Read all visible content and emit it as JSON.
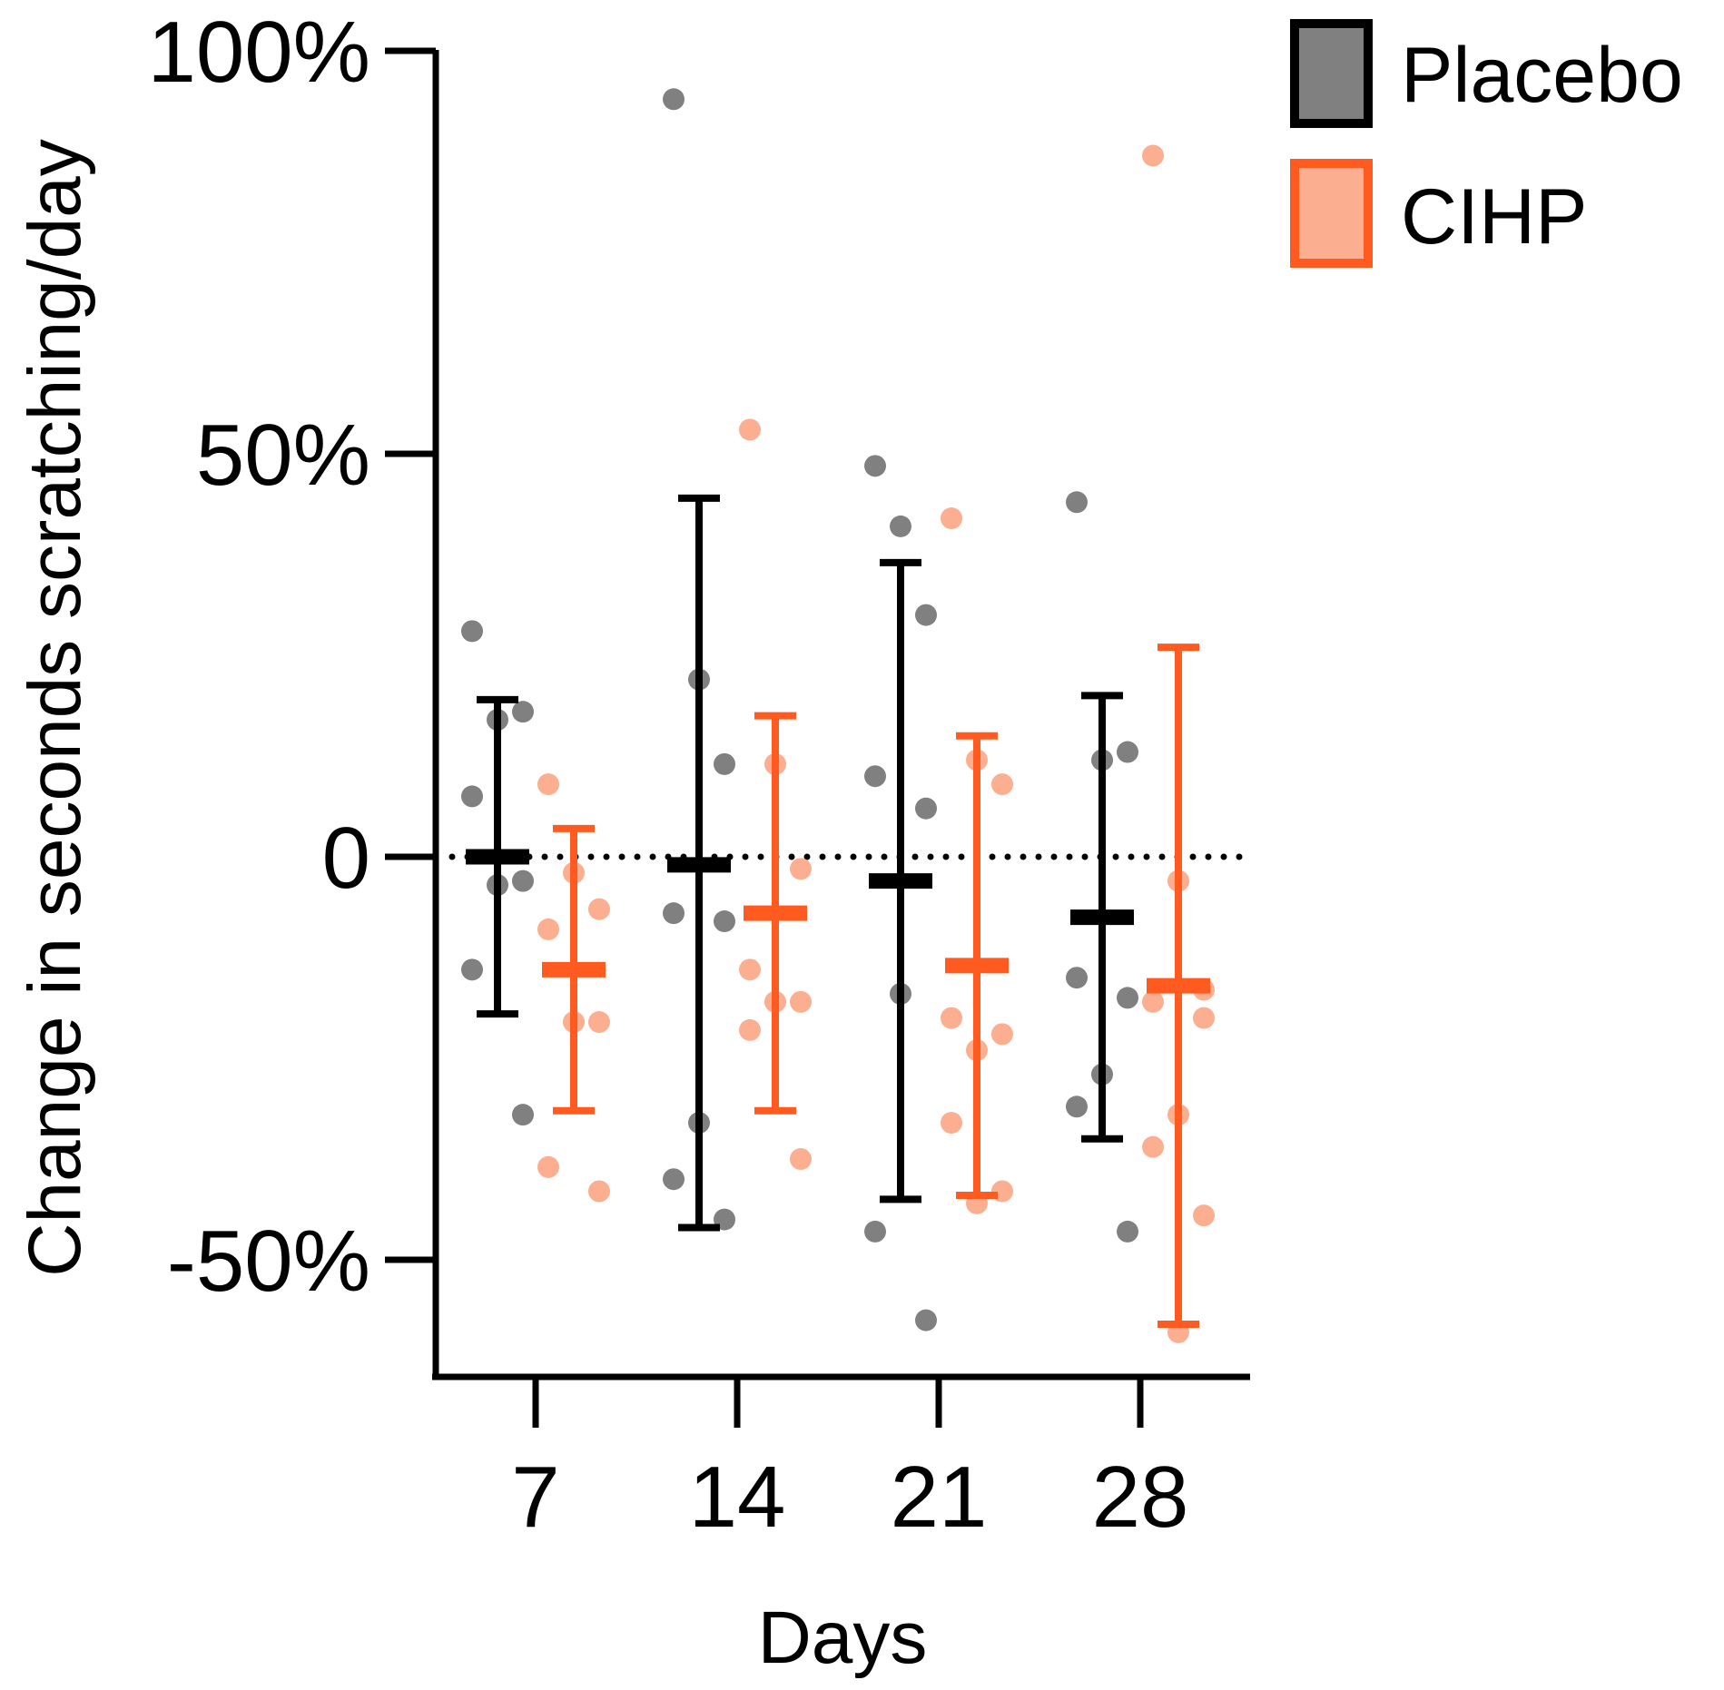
{
  "chart_data": {
    "type": "scatter",
    "subtype": "dot plot with mean and SD error bars",
    "title": "",
    "xlabel": "Days",
    "ylabel": "Change in seconds scratching/day",
    "categories": [
      "7",
      "14",
      "21",
      "28"
    ],
    "ylim": [
      -0.63,
      1.0
    ],
    "yticks": [
      {
        "value": 1.0,
        "label": "100%"
      },
      {
        "value": 0.5,
        "label": "50%"
      },
      {
        "value": 0.0,
        "label": "0"
      },
      {
        "value": -0.5,
        "label": "-50%"
      }
    ],
    "reference_line": {
      "value": 0,
      "style": "dotted"
    },
    "legend_position": "top-right",
    "series": [
      {
        "name": "Placebo",
        "point_color": "#808080",
        "line_color": "#000000",
        "groups": [
          {
            "day": "7",
            "mean": 0.0,
            "sd_upper": 0.195,
            "sd_lower": -0.195,
            "points": [
              0.28,
              0.17,
              0.18,
              0.075,
              -0.03,
              -0.035,
              -0.14,
              -0.32
            ]
          },
          {
            "day": "14",
            "mean": -0.01,
            "sd_upper": 0.445,
            "sd_lower": -0.46,
            "points": [
              0.94,
              0.22,
              0.115,
              -0.07,
              -0.08,
              -0.33,
              -0.4,
              -0.45
            ]
          },
          {
            "day": "21",
            "mean": -0.03,
            "sd_upper": 0.365,
            "sd_lower": -0.425,
            "points": [
              0.485,
              0.41,
              0.3,
              0.1,
              0.06,
              -0.17,
              -0.465,
              -0.575
            ]
          },
          {
            "day": "28",
            "mean": -0.075,
            "sd_upper": 0.2,
            "sd_lower": -0.35,
            "points": [
              0.44,
              0.12,
              0.13,
              -0.15,
              -0.175,
              -0.27,
              -0.31,
              -0.465
            ]
          }
        ]
      },
      {
        "name": "CIHP",
        "point_color": "#FCAE91",
        "line_color": "#FF5A1F",
        "groups": [
          {
            "day": "7",
            "mean": -0.14,
            "sd_upper": 0.035,
            "sd_lower": -0.315,
            "points": [
              0.09,
              -0.02,
              -0.065,
              -0.09,
              -0.205,
              -0.205,
              -0.385,
              -0.415
            ]
          },
          {
            "day": "14",
            "mean": -0.07,
            "sd_upper": 0.175,
            "sd_lower": -0.315,
            "points": [
              0.53,
              0.115,
              -0.015,
              -0.14,
              -0.18,
              -0.18,
              -0.215,
              -0.375
            ]
          },
          {
            "day": "21",
            "mean": -0.135,
            "sd_upper": 0.15,
            "sd_lower": -0.42,
            "points": [
              0.42,
              0.12,
              0.09,
              -0.2,
              -0.22,
              -0.24,
              -0.33,
              -0.415,
              -0.43
            ]
          },
          {
            "day": "28",
            "mean": -0.16,
            "sd_upper": 0.26,
            "sd_lower": -0.58,
            "points": [
              0.87,
              -0.03,
              -0.165,
              -0.18,
              -0.2,
              -0.32,
              -0.36,
              -0.445,
              -0.59
            ]
          }
        ]
      }
    ]
  }
}
